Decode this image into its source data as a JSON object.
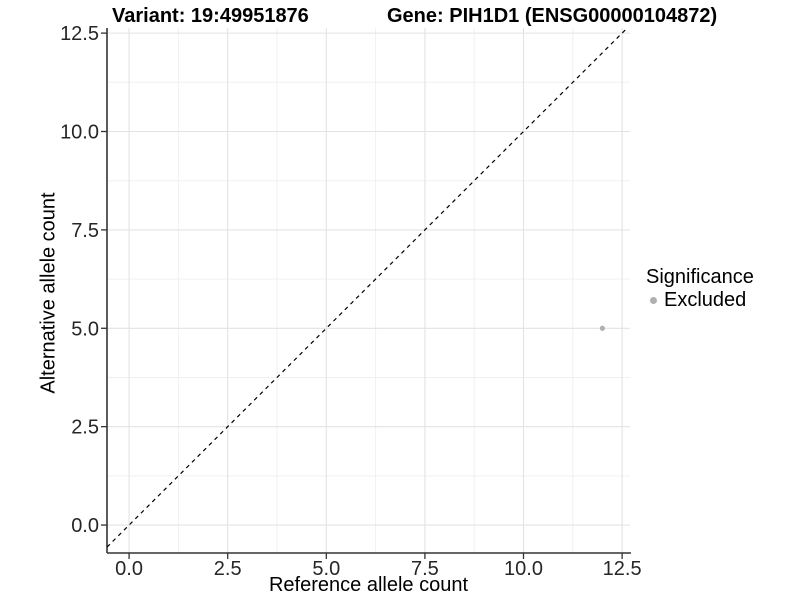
{
  "chart_data": {
    "type": "scatter",
    "title_left": "Variant: 19:49951876",
    "title_right": "Gene: PIH1D1 (ENSG00000104872)",
    "xlabel": "Reference allele count",
    "ylabel": "Alternative allele count",
    "xlim": [
      -0.56,
      12.7
    ],
    "ylim": [
      -0.71,
      12.63
    ],
    "x_ticks": [
      0,
      2.5,
      5,
      7.5,
      10,
      12.5
    ],
    "x_tick_labels": [
      "0.0",
      "2.5",
      "5.0",
      "7.5",
      "10.0",
      "12.5"
    ],
    "y_ticks": [
      0,
      2.5,
      5,
      7.5,
      10,
      12.5
    ],
    "y_tick_labels": [
      "0.0",
      "2.5",
      "5.0",
      "7.5",
      "10.0",
      "12.5"
    ],
    "x_minor_ticks": [
      1.25,
      3.75,
      6.25,
      8.75,
      11.25
    ],
    "y_minor_ticks": [
      1.25,
      3.75,
      6.25,
      8.75,
      11.25
    ],
    "grid": "major+minor",
    "legend": {
      "title": "Significance",
      "position": "right",
      "items": [
        {
          "label": "Excluded",
          "color": "#b0b0b0"
        }
      ]
    },
    "series": [
      {
        "name": "Excluded",
        "color": "#b0b0b0",
        "points": [
          [
            12,
            5
          ]
        ]
      }
    ],
    "reference_line": {
      "type": "identity y=x",
      "linetype": "dashed",
      "color": "#000000"
    }
  },
  "colors": {
    "background": "#ffffff",
    "grid_major": "#e3e3e3",
    "grid_minor": "#f0f0f0",
    "axis_line": "#333333",
    "tick_label": "#262626",
    "point": "#b0b0b0"
  }
}
